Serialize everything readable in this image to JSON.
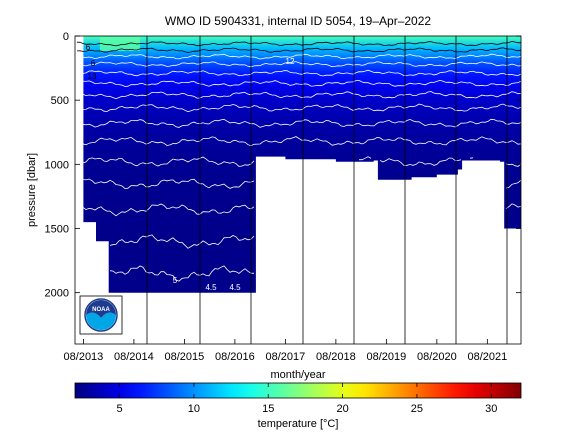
{
  "chart_data": {
    "type": "heatmap",
    "title": "WMO ID 5904331, internal ID 5054, 19–Apr–2022",
    "xlabel": "month/year",
    "ylabel": "pressure [dbar]",
    "x_ticks": [
      "08/2013",
      "08/2014",
      "08/2015",
      "08/2016",
      "08/2017",
      "08/2018",
      "08/2019",
      "08/2020",
      "08/2021"
    ],
    "x_range": [
      "2013-06",
      "2022-04"
    ],
    "y_ticks": [
      0,
      500,
      1000,
      1500,
      2000
    ],
    "ylim": [
      2400,
      0
    ],
    "y_reversed": true,
    "colorbar": {
      "label": "temperature [°C]",
      "ticks": [
        5,
        10,
        15,
        20,
        25,
        30
      ],
      "range": [
        2,
        32
      ],
      "colormap": "jet"
    },
    "depth_coverage": [
      {
        "x": "2013-08",
        "max_pressure": 1450
      },
      {
        "x": "2013-11",
        "max_pressure": 1600
      },
      {
        "x": "2014-02",
        "max_pressure": 2000
      },
      {
        "x": "2014-06",
        "max_pressure": 2000
      },
      {
        "x": "2014-09",
        "max_pressure": 2000
      },
      {
        "x": "2015-01",
        "max_pressure": 2000
      },
      {
        "x": "2015-06",
        "max_pressure": 2000
      },
      {
        "x": "2015-12",
        "max_pressure": 2000
      },
      {
        "x": "2016-08",
        "max_pressure": 2000
      },
      {
        "x": "2016-12",
        "max_pressure": 2000
      },
      {
        "x": "2017-01",
        "max_pressure": 940
      },
      {
        "x": "2017-08",
        "max_pressure": 960
      },
      {
        "x": "2018-08",
        "max_pressure": 980
      },
      {
        "x": "2019-05",
        "max_pressure": 970
      },
      {
        "x": "2019-06",
        "max_pressure": 1120
      },
      {
        "x": "2020-02",
        "max_pressure": 1100
      },
      {
        "x": "2020-08",
        "max_pressure": 1080
      },
      {
        "x": "2021-01",
        "max_pressure": 1040
      },
      {
        "x": "2021-02",
        "max_pressure": 970
      },
      {
        "x": "2021-11",
        "max_pressure": 980
      },
      {
        "x": "2021-12",
        "max_pressure": 1500
      },
      {
        "x": "2022-04",
        "max_pressure": 1540
      }
    ],
    "contour_labels": [
      "6",
      "13",
      "12",
      "6",
      "5",
      "4.5",
      "4.5"
    ],
    "logo": "NOAA"
  },
  "colors": {
    "background": "#ffffff",
    "contour_lines": "#000000",
    "contour_labels": "#ffffff",
    "missing": "#ffffff"
  }
}
